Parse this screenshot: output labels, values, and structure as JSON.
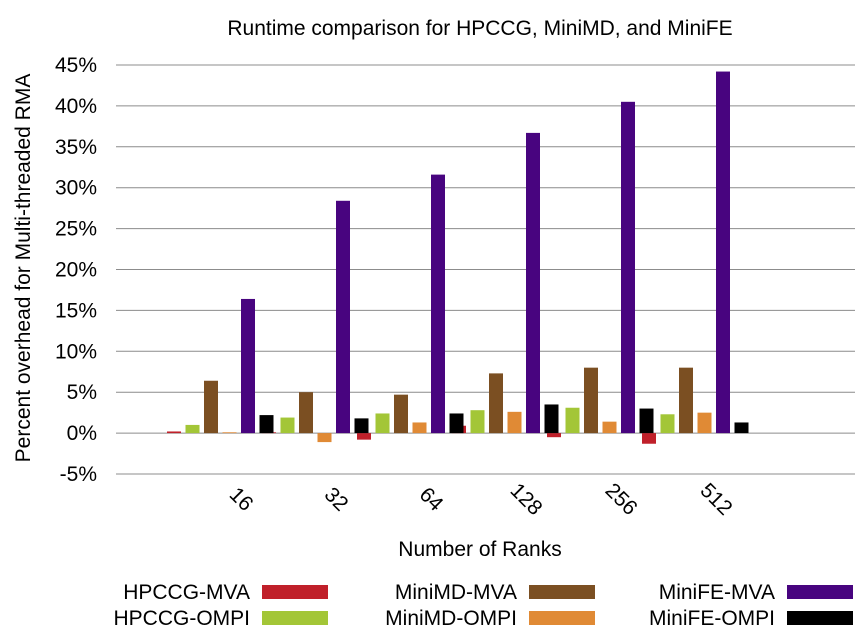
{
  "chart_data": {
    "type": "bar",
    "title": "Runtime comparison for HPCCG, MiniMD, and MiniFE",
    "xlabel": "Number of Ranks",
    "ylabel": "Percent overhead for Multi-threaded RMA",
    "categories": [
      "16",
      "32",
      "64",
      "128",
      "256",
      "512"
    ],
    "ylim": [
      -5,
      45
    ],
    "yticks": [
      -5,
      0,
      5,
      10,
      15,
      20,
      25,
      30,
      35,
      40,
      45
    ],
    "ytick_labels": [
      "-5%",
      "0%",
      "5%",
      "10%",
      "15%",
      "20%",
      "25%",
      "30%",
      "35%",
      "40%",
      "45%"
    ],
    "grid": "horizontal",
    "legend_position": "bottom",
    "series": [
      {
        "name": "HPCCG-MVA",
        "color": "#c0202a",
        "values": [
          0.2,
          0.1,
          -0.8,
          0.9,
          -0.5,
          -1.3
        ]
      },
      {
        "name": "HPCCG-OMPI",
        "color": "#a3c637",
        "values": [
          1.0,
          1.9,
          2.4,
          2.8,
          3.1,
          2.3
        ]
      },
      {
        "name": "MiniMD-MVA",
        "color": "#7b4f22",
        "values": [
          6.4,
          5.0,
          4.7,
          7.3,
          8.0,
          8.0
        ]
      },
      {
        "name": "MiniMD-OMPI",
        "color": "#e08a35",
        "values": [
          0.1,
          -1.1,
          1.3,
          2.6,
          1.4,
          2.5
        ]
      },
      {
        "name": "MiniFE-MVA",
        "color": "#48047f",
        "values": [
          16.4,
          28.4,
          31.6,
          36.7,
          40.5,
          44.2
        ]
      },
      {
        "name": "MiniFE-OMPI",
        "color": "#000000",
        "values": [
          2.2,
          1.8,
          2.4,
          3.5,
          3.0,
          1.3
        ]
      }
    ]
  }
}
